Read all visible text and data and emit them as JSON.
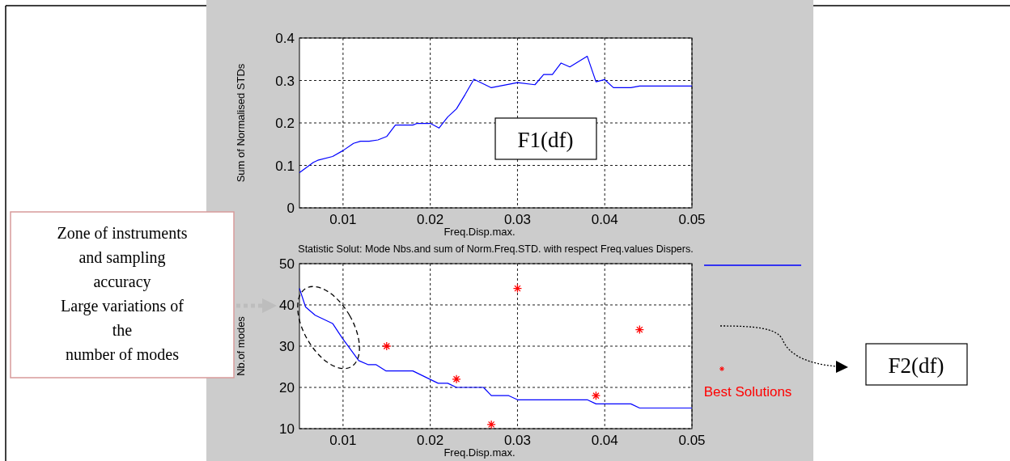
{
  "chart_data": [
    {
      "type": "line",
      "xlabel": "Freq.Disp.max.",
      "ylabel": "Sum of Normalised STDs",
      "xlim": [
        0.005,
        0.05
      ],
      "ylim": [
        0,
        0.4
      ],
      "xticks": [
        0.01,
        0.02,
        0.03,
        0.04,
        0.05
      ],
      "yticks": [
        0,
        0.1,
        0.2,
        0.3,
        0.4
      ],
      "grid": true,
      "annotations": [
        "F1(df)"
      ],
      "series": [
        {
          "color": "#0000ff",
          "x": [
            0.005,
            0.0066,
            0.0071,
            0.0088,
            0.01,
            0.0112,
            0.012,
            0.013,
            0.014,
            0.015,
            0.016,
            0.018,
            0.0185,
            0.02,
            0.021,
            0.022,
            0.023,
            0.024,
            0.025,
            0.027,
            0.03,
            0.032,
            0.033,
            0.034,
            0.035,
            0.036,
            0.038,
            0.039,
            0.04,
            0.041,
            0.043,
            0.044,
            0.05
          ],
          "values": [
            0.083,
            0.107,
            0.112,
            0.121,
            0.135,
            0.152,
            0.157,
            0.157,
            0.16,
            0.168,
            0.195,
            0.195,
            0.199,
            0.199,
            0.188,
            0.214,
            0.233,
            0.267,
            0.303,
            0.283,
            0.295,
            0.29,
            0.314,
            0.314,
            0.341,
            0.332,
            0.357,
            0.297,
            0.302,
            0.283,
            0.283,
            0.287,
            0.287
          ]
        }
      ]
    },
    {
      "type": "line",
      "title": "Statistic Solut: Mode Nbs.and sum of Norm.Freq.STD. with respect Freq.values Dispers.",
      "xlabel": "Freq.Disp.max.",
      "ylabel": "Nb.of modes",
      "xlim": [
        0.005,
        0.05
      ],
      "ylim": [
        10,
        50
      ],
      "xticks": [
        0.01,
        0.02,
        0.03,
        0.04,
        0.05
      ],
      "yticks": [
        10,
        20,
        30,
        40,
        50
      ],
      "grid": true,
      "legend": "right",
      "annotations": [
        "Zone of instruments\nand sampling\naccuracy\nLarge variations of\nthe\nnumber of modes",
        "F2(df)"
      ],
      "series": [
        {
          "color": "#0000ff",
          "x": [
            0.005,
            0.0057,
            0.0068,
            0.0088,
            0.0099,
            0.0118,
            0.0129,
            0.0138,
            0.0149,
            0.018,
            0.0209,
            0.022,
            0.023,
            0.0261,
            0.027,
            0.029,
            0.03,
            0.038,
            0.039,
            0.043,
            0.044,
            0.05
          ],
          "values": [
            44,
            39.5,
            37.5,
            35.5,
            32,
            26.5,
            25.5,
            25.5,
            24,
            24,
            21,
            21,
            20,
            20,
            18,
            18,
            17,
            17,
            16,
            16,
            15,
            15
          ]
        },
        {
          "type": "scatter",
          "name": "Best Solutions",
          "color": "#ff0000",
          "marker": "cross",
          "x": [
            0.015,
            0.023,
            0.027,
            0.03,
            0.039,
            0.044
          ],
          "values": [
            30,
            22,
            11,
            44,
            18,
            34
          ]
        }
      ]
    }
  ]
}
